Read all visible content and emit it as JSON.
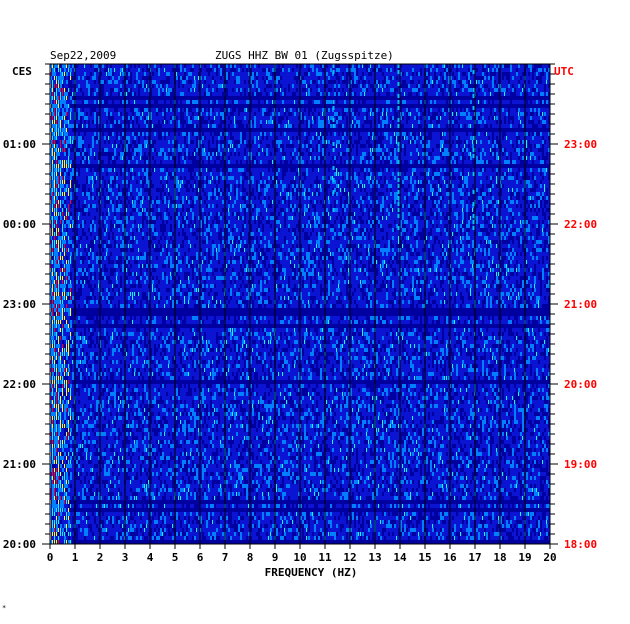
{
  "chart_data": {
    "type": "heatmap",
    "date": "Sep22,2009",
    "title": "ZUGS HHZ BW 01 (Zugsspitze)",
    "xlabel": "FREQUENCY (HZ)",
    "x_range": [
      0,
      20
    ],
    "x_ticks": [
      "0",
      "1",
      "2",
      "3",
      "4",
      "5",
      "6",
      "7",
      "8",
      "9",
      "10",
      "11",
      "12",
      "13",
      "14",
      "15",
      "16",
      "17",
      "18",
      "19",
      "20"
    ],
    "left_axis": {
      "label": "CES",
      "ticks": [
        "01:00",
        "00:00",
        "23:00",
        "22:00",
        "21:00",
        "20:00"
      ]
    },
    "right_axis": {
      "label": "UTC",
      "ticks": [
        "23:00",
        "22:00",
        "21:00",
        "20:00",
        "19:00",
        "18:00"
      ],
      "color": "#ff0000"
    },
    "color_scale": [
      "#0000a0",
      "#0000ff",
      "#0080ff",
      "#00ffff",
      "#ffff00",
      "#ff0000"
    ],
    "background_color": "#0a14d2",
    "features": [
      {
        "x": 0.2,
        "note": "high energy band near 0 Hz"
      },
      {
        "x": 11.3,
        "note": "persistent line"
      },
      {
        "x": 13.9,
        "note": "persistent line"
      },
      {
        "x": 16.9,
        "note": "persistent line"
      }
    ],
    "grid": true
  },
  "footnote": "*"
}
